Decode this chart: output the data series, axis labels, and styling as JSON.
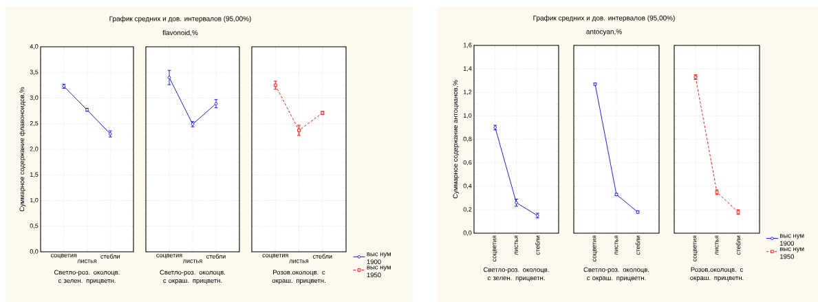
{
  "chart_data": [
    {
      "type": "line",
      "ylabel": "Суммарное содержание флавоноидов,%",
      "xlabel": "Светло-роз. околоцв. с зелен. прицветн.",
      "categories": [
        "соцветия",
        "листья",
        "стебли"
      ],
      "ylim": [
        0,
        4
      ],
      "yticks": [
        {
          "value": 0,
          "label": "0,0"
        },
        {
          "value": 0.5,
          "label": "0,5"
        },
        {
          "value": 1,
          "label": "1,0"
        },
        {
          "value": 1.5,
          "label": "1,5"
        },
        {
          "value": 2,
          "label": "2,0"
        },
        {
          "value": 2.5,
          "label": "2,5"
        },
        {
          "value": 3,
          "label": "3,0"
        },
        {
          "value": 3.5,
          "label": "3,5"
        },
        {
          "value": 4,
          "label": "4,0"
        }
      ],
      "grid": true,
      "legend": false,
      "series": [
        {
          "color": "#0000ff",
          "marker": "circle",
          "line_style": "solid",
          "values": [
            3.23,
            2.77,
            2.3
          ],
          "errors": [
            0.04,
            0.03,
            0.06
          ]
        }
      ]
    },
    {
      "type": "line",
      "title": "График средних и дов. интервалов (95,00%)",
      "subtitle": "flavonoid,%",
      "xlabel": "Светло-роз. околоцв. с окраш. прицветн.",
      "categories": [
        "соцветия",
        "листья",
        "стебли"
      ],
      "ylim": [
        0,
        4
      ],
      "yticks": [
        {
          "value": 0,
          "label": null
        },
        {
          "value": 0.5,
          "label": null
        },
        {
          "value": 1,
          "label": null
        },
        {
          "value": 1.5,
          "label": null
        },
        {
          "value": 2,
          "label": null
        },
        {
          "value": 2.5,
          "label": null
        },
        {
          "value": 3,
          "label": null
        },
        {
          "value": 3.5,
          "label": null
        },
        {
          "value": 4,
          "label": null
        }
      ],
      "tick_labels": "x",
      "grid": true,
      "legend": false,
      "series": [
        {
          "color": "#0000ff",
          "marker": "circle",
          "line_style": "solid",
          "values": [
            3.4,
            2.49,
            2.89
          ],
          "errors": [
            0.14,
            0.05,
            0.08
          ]
        }
      ]
    },
    {
      "type": "line",
      "xlabel": "Розов.околоцв. с окраш. прицветн.",
      "categories": [
        "соцветия",
        "листья",
        "стебли"
      ],
      "ylim": [
        0,
        4
      ],
      "yticks": [
        {
          "value": 0,
          "label": null
        },
        {
          "value": 0.5,
          "label": null
        },
        {
          "value": 1,
          "label": null
        },
        {
          "value": 1.5,
          "label": null
        },
        {
          "value": 2,
          "label": null
        },
        {
          "value": 2.5,
          "label": null
        },
        {
          "value": 3,
          "label": null
        },
        {
          "value": 3.5,
          "label": null
        },
        {
          "value": 4,
          "label": null
        }
      ],
      "tick_labels": "x",
      "grid": true,
      "legend": "right",
      "series": [
        {
          "name": "выс нум 1900",
          "color": "#0000ff",
          "marker": "circle",
          "line_style": "solid",
          "values": [
            null,
            null,
            null
          ]
        },
        {
          "name": "выс нум 1950",
          "color": "#ff0000",
          "marker": "square",
          "line_style": "dashed",
          "values": [
            3.25,
            2.37,
            2.71
          ],
          "errors": [
            0.08,
            0.1,
            0.03
          ]
        }
      ]
    },
    {
      "type": "line",
      "ylabel": "Суммарное содержание антоцианов,%",
      "xlabel": "Светло-роз. околоцв. с зелен. прицветн.",
      "categories": [
        "соцветия",
        "листья",
        "стебли"
      ],
      "ylim": [
        0,
        1.6
      ],
      "yticks": [
        {
          "value": 0,
          "label": "0,0"
        },
        {
          "value": 0.2,
          "label": "0,2"
        },
        {
          "value": 0.4,
          "label": "0,4"
        },
        {
          "value": 0.6,
          "label": "0,6"
        },
        {
          "value": 0.8,
          "label": "0,8"
        },
        {
          "value": 1,
          "label": "1,0"
        },
        {
          "value": 1.2,
          "label": "1,2"
        },
        {
          "value": 1.4,
          "label": "1,4"
        },
        {
          "value": 1.6,
          "label": "1,6"
        }
      ],
      "grid": true,
      "legend": false,
      "series": [
        {
          "color": "#0000ff",
          "marker": "circle",
          "line_style": "solid",
          "values": [
            0.9,
            0.26,
            0.15
          ],
          "errors": [
            0.02,
            0.03,
            0.02
          ]
        }
      ]
    },
    {
      "type": "line",
      "title": "График средних и дов. интервалов (95,00%)",
      "subtitle": "antocyan,%",
      "xlabel": "Светло-роз. околоцв. с окраш. прицветн.",
      "categories": [
        "соцветия",
        "листья",
        "стебли"
      ],
      "ylim": [
        0,
        1.6
      ],
      "yticks": [
        {
          "value": 0,
          "label": null
        },
        {
          "value": 0.2,
          "label": null
        },
        {
          "value": 0.4,
          "label": null
        },
        {
          "value": 0.6,
          "label": null
        },
        {
          "value": 0.8,
          "label": null
        },
        {
          "value": 1,
          "label": null
        },
        {
          "value": 1.2,
          "label": null
        },
        {
          "value": 1.4,
          "label": null
        },
        {
          "value": 1.6,
          "label": null
        }
      ],
      "tick_labels": "x",
      "grid": true,
      "legend": false,
      "series": [
        {
          "color": "#0000ff",
          "marker": "circle",
          "line_style": "solid",
          "values": [
            1.27,
            0.33,
            0.18
          ],
          "errors": [
            0.01,
            0.01,
            0.01
          ]
        }
      ]
    },
    {
      "type": "line",
      "xlabel": "Розов.околоцв. с окраш. прицветн.",
      "categories": [
        "соцветия",
        "листья",
        "стебли"
      ],
      "ylim": [
        0,
        1.6
      ],
      "yticks": [
        {
          "value": 0,
          "label": null
        },
        {
          "value": 0.2,
          "label": null
        },
        {
          "value": 0.4,
          "label": null
        },
        {
          "value": 0.6,
          "label": null
        },
        {
          "value": 0.8,
          "label": null
        },
        {
          "value": 1,
          "label": null
        },
        {
          "value": 1.2,
          "label": null
        },
        {
          "value": 1.4,
          "label": null
        },
        {
          "value": 1.6,
          "label": null
        }
      ],
      "tick_labels": "x",
      "grid": true,
      "legend": "right",
      "series": [
        {
          "name": "выс нум 1900",
          "color": "#0000ff",
          "marker": "circle",
          "line_style": "solid",
          "values": [
            null,
            null,
            null
          ]
        },
        {
          "name": "выс нум 1950",
          "color": "#ff0000",
          "marker": "square",
          "line_style": "dashed",
          "values": [
            1.33,
            0.35,
            0.18
          ],
          "errors": [
            0.02,
            0.02,
            0.02
          ]
        }
      ]
    }
  ]
}
